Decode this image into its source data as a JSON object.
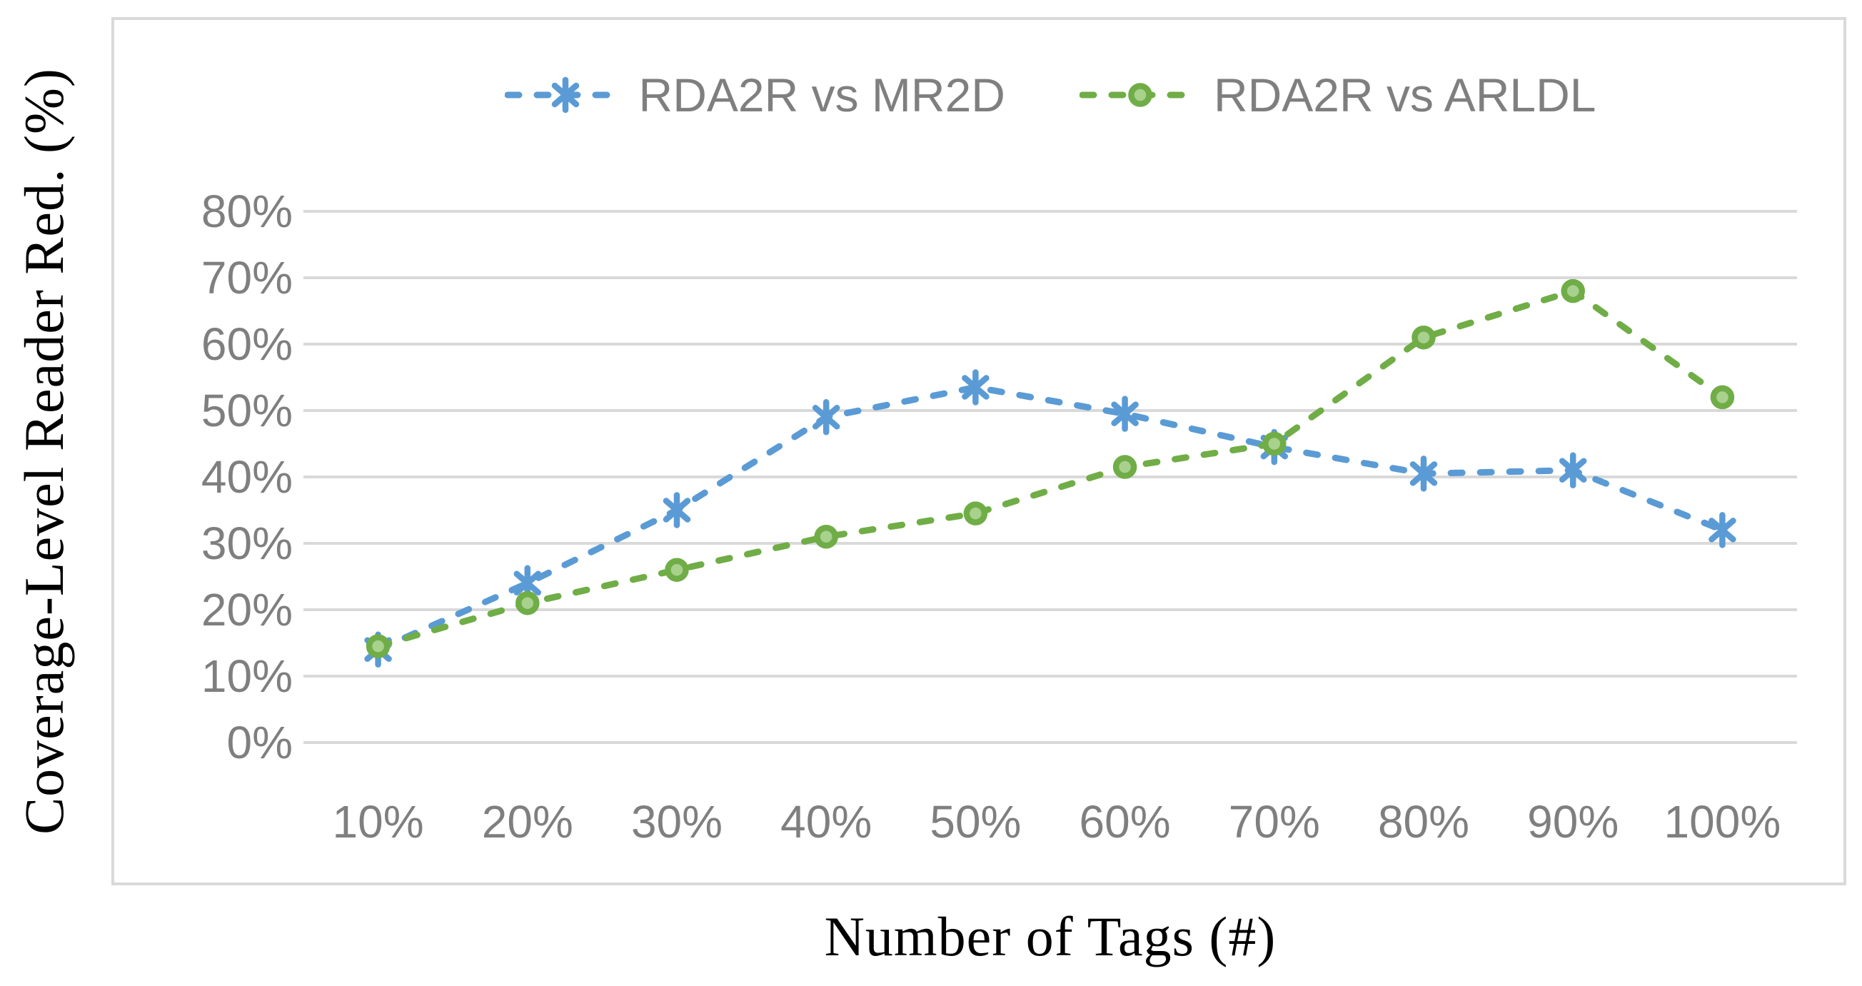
{
  "chart_data": {
    "type": "line",
    "title": "",
    "xlabel": "Number of Tags (#)",
    "ylabel": "Coverage-Level Reader Red.  (%)",
    "categories": [
      "10%",
      "20%",
      "30%",
      "40%",
      "50%",
      "60%",
      "70%",
      "80%",
      "90%",
      "100%"
    ],
    "series": [
      {
        "name": "RDA2R vs MR2D",
        "marker": "star",
        "line_color": "#5B9BD5",
        "line_style": "dashed",
        "values": [
          14,
          24,
          35,
          49,
          53.5,
          49.5,
          44.5,
          40.5,
          41,
          32
        ]
      },
      {
        "name": "RDA2R vs ARLDL",
        "marker": "circle",
        "line_color": "#70AD47",
        "marker_fill": "#A9D18E",
        "line_style": "dashed",
        "values": [
          14.5,
          21,
          26,
          31,
          34.5,
          41.5,
          45,
          61,
          68,
          52
        ]
      }
    ],
    "ylim": [
      0,
      80
    ],
    "yticks": [
      "0%",
      "10%",
      "20%",
      "30%",
      "40%",
      "50%",
      "60%",
      "70%",
      "80%"
    ],
    "ytick_values": [
      0,
      10,
      20,
      30,
      40,
      50,
      60,
      70,
      80
    ],
    "grid": "horizontal",
    "legend_position": "top-center",
    "colors": {
      "grid": "#D9D9D9",
      "border": "#D9D9D9",
      "tick_text": "#7F7F7F",
      "axis_title_text": "#000000",
      "background": "#FFFFFF"
    }
  }
}
